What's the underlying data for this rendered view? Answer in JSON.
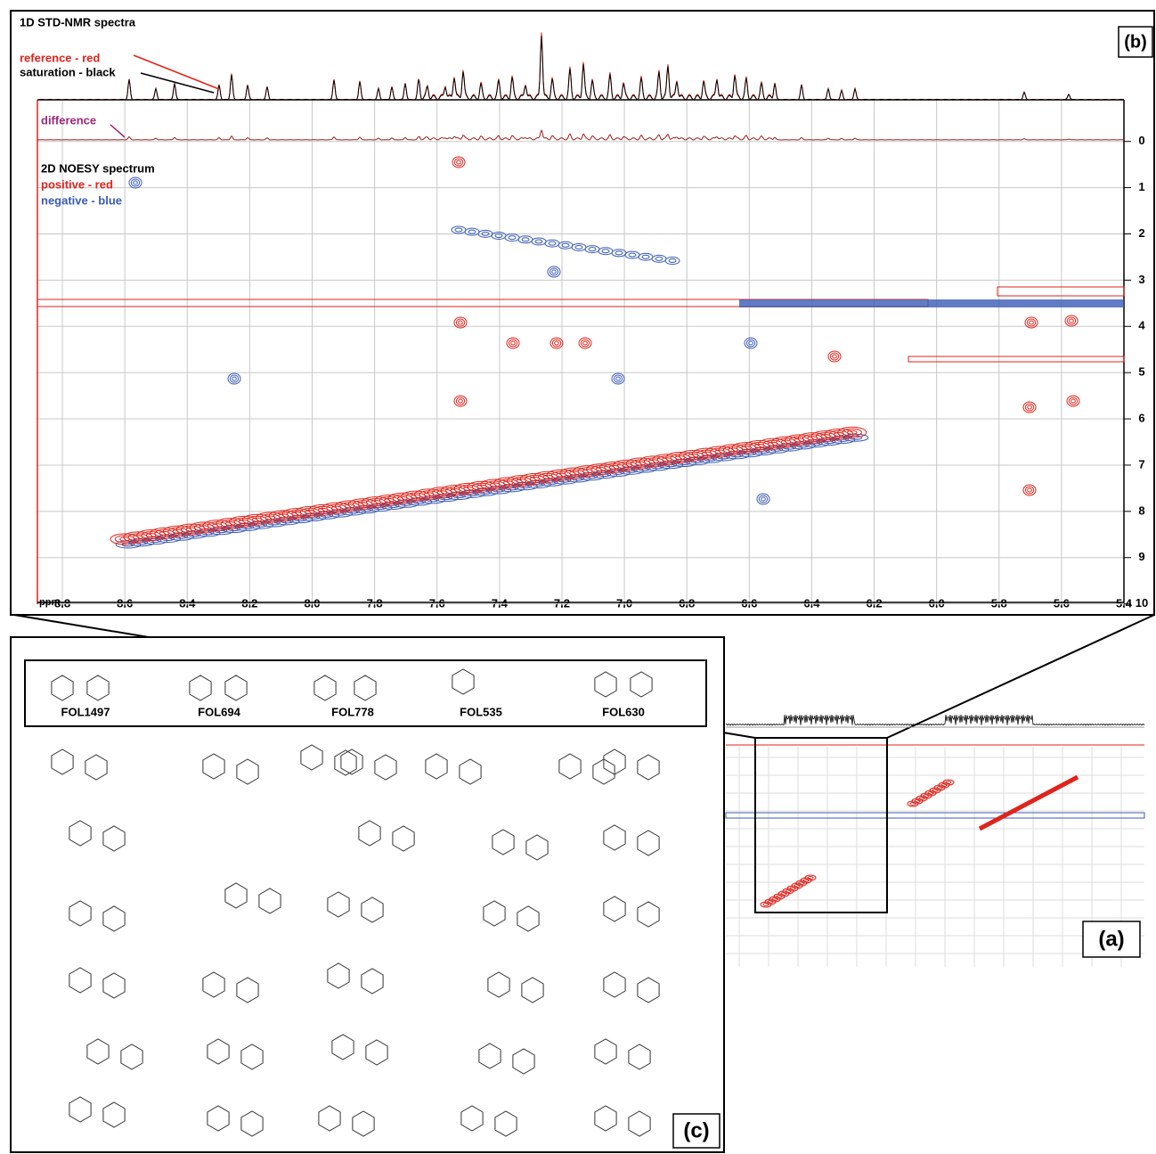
{
  "panel_b": {
    "label": "(b)",
    "title_1d": "1D STD-NMR spectra",
    "legend_1d": [
      "reference - red",
      "saturation - black"
    ],
    "difference": "difference",
    "title_2d": "2D NOESY spectrum",
    "legend_2d": [
      "positive - red",
      "negative - blue"
    ],
    "x_unit": "ppm",
    "xlim": [
      8.88,
      5.4
    ],
    "xticks": [
      8.8,
      8.6,
      8.4,
      8.2,
      {
        "value": 8,
        "label": "8.0"
      },
      7.8,
      7.6,
      7.4,
      7.2,
      {
        "value": 7,
        "label": "7.0"
      },
      6.8,
      6.6,
      6.4,
      6.2,
      {
        "value": 6,
        "label": "6.0"
      },
      5.8,
      5.6,
      5.4
    ],
    "ylim": [
      -0.9,
      10.2
    ],
    "yticks": [
      0,
      1,
      2,
      3,
      4,
      5,
      6,
      7,
      8,
      9,
      10
    ]
  },
  "panel_a": {
    "label": "(a)"
  },
  "panel_c": {
    "label": "(c)",
    "hits": [
      "FOL1497",
      "FOL694",
      "FOL778",
      "FOL535",
      "FOL630"
    ]
  }
}
